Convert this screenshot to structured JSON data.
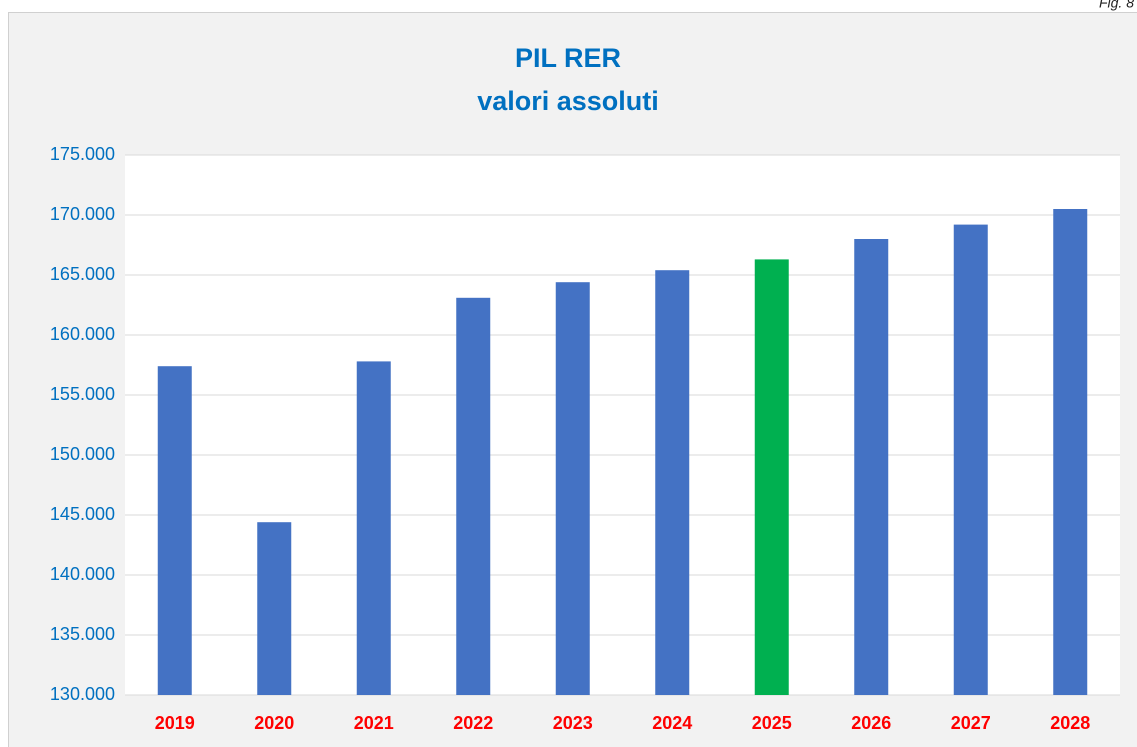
{
  "chart_data": {
    "type": "bar",
    "title": "PIL RER",
    "subtitle": "valori assoluti",
    "annotation": "Fig. 8",
    "categories": [
      "2019",
      "2020",
      "2021",
      "2022",
      "2023",
      "2024",
      "2025",
      "2026",
      "2027",
      "2028"
    ],
    "values": [
      157400,
      144400,
      157800,
      163100,
      164400,
      165400,
      166300,
      168000,
      169200,
      170500
    ],
    "colors": [
      "#4472c4",
      "#4472c4",
      "#4472c4",
      "#4472c4",
      "#4472c4",
      "#4472c4",
      "#00b050",
      "#4472c4",
      "#4472c4",
      "#4472c4"
    ],
    "ylim": [
      130000,
      175000
    ],
    "yticks": [
      {
        "value": 130000,
        "label": "130.000"
      },
      {
        "value": 135000,
        "label": "135.000"
      },
      {
        "value": 140000,
        "label": "140.000"
      },
      {
        "value": 145000,
        "label": "145.000"
      },
      {
        "value": 150000,
        "label": "150.000"
      },
      {
        "value": 155000,
        "label": "155.000"
      },
      {
        "value": 160000,
        "label": "160.000"
      },
      {
        "value": 165000,
        "label": "165.000"
      },
      {
        "value": 170000,
        "label": "170.000"
      },
      {
        "value": 175000,
        "label": "175.000"
      }
    ],
    "grid": true
  }
}
